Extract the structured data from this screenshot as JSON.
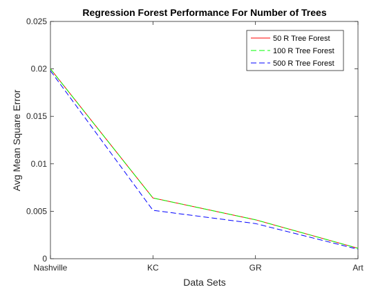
{
  "chart_data": {
    "type": "line",
    "title": "Regression Forest Performance For Number of Trees",
    "xlabel": "Data Sets",
    "ylabel": "Avg Mean Square Error",
    "categories": [
      "Nashville",
      "KC",
      "GR",
      "Art"
    ],
    "ylim": [
      0,
      0.025
    ],
    "yticks": [
      0,
      0.005,
      0.01,
      0.015,
      0.02,
      0.025
    ],
    "ytick_labels": [
      "0",
      "0.005",
      "0.01",
      "0.015",
      "0.02",
      "0.025"
    ],
    "grid": false,
    "legend_position": "top-right",
    "series": [
      {
        "name": "50 R Tree Forest",
        "values": [
          0.02,
          0.0064,
          0.0041,
          0.0011
        ],
        "color": "#ff0000",
        "style": "solid"
      },
      {
        "name": "100 R Tree Forest",
        "values": [
          0.02,
          0.0064,
          0.0041,
          0.0011
        ],
        "color": "#00ff00",
        "style": "dashed"
      },
      {
        "name": "500 R Tree Forest",
        "values": [
          0.0198,
          0.0051,
          0.0037,
          0.001
        ],
        "color": "#0000ff",
        "style": "dashed"
      }
    ]
  }
}
